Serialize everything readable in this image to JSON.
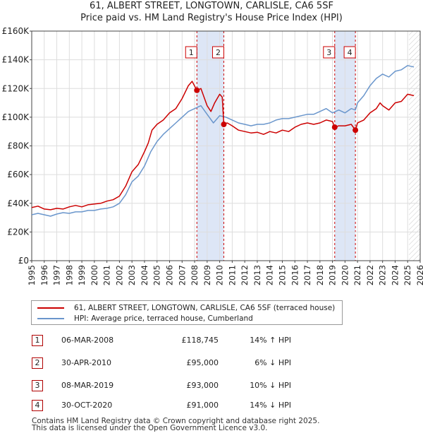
{
  "title_line1": "61, ALBERT STREET, LONGTOWN, CARLISLE, CA6 5SF",
  "title_line2": "Price paid vs. HM Land Registry's House Price Index (HPI)",
  "colors": {
    "property": "#cc0000",
    "hpi": "#6a96cc",
    "shade": "#dde6f6",
    "grid": "#dddddd",
    "hatch": "#c8c8c8"
  },
  "legend": {
    "property_label": "61, ALBERT STREET, LONGTOWN, CARLISLE, CA6 5SF (terraced house)",
    "hpi_label": "HPI: Average price, terraced house, Cumberland"
  },
  "transactions": [
    {
      "num": "1",
      "date": "06-MAR-2008",
      "price": "£118,745",
      "hpi": "14% ↑ HPI"
    },
    {
      "num": "2",
      "date": "30-APR-2010",
      "price": "£95,000",
      "hpi": "6% ↓ HPI"
    },
    {
      "num": "3",
      "date": "08-MAR-2019",
      "price": "£93,000",
      "hpi": "10% ↓ HPI"
    },
    {
      "num": "4",
      "date": "30-OCT-2020",
      "price": "£91,000",
      "hpi": "14% ↓ HPI"
    }
  ],
  "footer_line1": "Contains HM Land Registry data © Crown copyright and database right 2025.",
  "footer_line2": "This data is licensed under the Open Government Licence v3.0.",
  "chart_data": {
    "type": "line",
    "title": "61, ALBERT STREET, LONGTOWN, CARLISLE, CA6 5SF — Price paid vs. HM Land Registry's House Price Index (HPI)",
    "xlim": [
      1995,
      2026
    ],
    "ylim": [
      0,
      160000
    ],
    "x_ticks": [
      1995,
      1996,
      1997,
      1998,
      1999,
      2000,
      2001,
      2002,
      2003,
      2004,
      2005,
      2006,
      2007,
      2008,
      2009,
      2010,
      2011,
      2012,
      2013,
      2014,
      2015,
      2016,
      2017,
      2018,
      2019,
      2020,
      2021,
      2022,
      2023,
      2024,
      2025,
      2026
    ],
    "y_ticks": [
      0,
      20000,
      40000,
      60000,
      80000,
      100000,
      120000,
      140000,
      160000
    ],
    "y_tick_labels": [
      "£0",
      "£20K",
      "£40K",
      "£60K",
      "£80K",
      "£100K",
      "£120K",
      "£140K",
      "£160K"
    ],
    "shaded_ranges": [
      [
        2008.18,
        2010.33
      ],
      [
        2019.18,
        2020.83
      ]
    ],
    "future_hatch_from": 2025.1,
    "series": [
      {
        "name": "61, ALBERT STREET, LONGTOWN, CARLISLE, CA6 5SF (terraced house)",
        "color": "#cc0000",
        "points": [
          [
            1995.0,
            37000
          ],
          [
            1995.5,
            38000
          ],
          [
            1996.0,
            36000
          ],
          [
            1996.5,
            35500
          ],
          [
            1997.0,
            36500
          ],
          [
            1997.5,
            36000
          ],
          [
            1998.0,
            37500
          ],
          [
            1998.5,
            38500
          ],
          [
            1999.0,
            37500
          ],
          [
            1999.5,
            39000
          ],
          [
            2000.0,
            39500
          ],
          [
            2000.5,
            40000
          ],
          [
            2001.0,
            41500
          ],
          [
            2001.5,
            42500
          ],
          [
            2002.0,
            45000
          ],
          [
            2002.5,
            52000
          ],
          [
            2003.0,
            62000
          ],
          [
            2003.5,
            67000
          ],
          [
            2004.0,
            76000
          ],
          [
            2004.3,
            82000
          ],
          [
            2004.6,
            91000
          ],
          [
            2005.0,
            95000
          ],
          [
            2005.5,
            98000
          ],
          [
            2006.0,
            103000
          ],
          [
            2006.5,
            106000
          ],
          [
            2007.0,
            113000
          ],
          [
            2007.5,
            122000
          ],
          [
            2007.8,
            125000
          ],
          [
            2008.18,
            118745
          ],
          [
            2008.5,
            120000
          ],
          [
            2009.0,
            108000
          ],
          [
            2009.3,
            104000
          ],
          [
            2009.6,
            110000
          ],
          [
            2010.0,
            116000
          ],
          [
            2010.2,
            114000
          ],
          [
            2010.33,
            95000
          ],
          [
            2010.6,
            96000
          ],
          [
            2011.0,
            94000
          ],
          [
            2011.5,
            91000
          ],
          [
            2012.0,
            90000
          ],
          [
            2012.5,
            89000
          ],
          [
            2013.0,
            89500
          ],
          [
            2013.5,
            88000
          ],
          [
            2014.0,
            90000
          ],
          [
            2014.5,
            89000
          ],
          [
            2015.0,
            91000
          ],
          [
            2015.5,
            90000
          ],
          [
            2016.0,
            93000
          ],
          [
            2016.5,
            95000
          ],
          [
            2017.0,
            96000
          ],
          [
            2017.5,
            95000
          ],
          [
            2018.0,
            96000
          ],
          [
            2018.5,
            98000
          ],
          [
            2019.0,
            97000
          ],
          [
            2019.18,
            93000
          ],
          [
            2019.5,
            94000
          ],
          [
            2020.0,
            94000
          ],
          [
            2020.5,
            95000
          ],
          [
            2020.83,
            91000
          ],
          [
            2021.0,
            96000
          ],
          [
            2021.5,
            98000
          ],
          [
            2022.0,
            103000
          ],
          [
            2022.5,
            106000
          ],
          [
            2022.8,
            110000
          ],
          [
            2023.0,
            108000
          ],
          [
            2023.5,
            105000
          ],
          [
            2024.0,
            110000
          ],
          [
            2024.5,
            111000
          ],
          [
            2025.0,
            116000
          ],
          [
            2025.5,
            115000
          ]
        ]
      },
      {
        "name": "HPI: Average price, terraced house, Cumberland",
        "color": "#6a96cc",
        "points": [
          [
            1995.0,
            32000
          ],
          [
            1995.5,
            33000
          ],
          [
            1996.0,
            32000
          ],
          [
            1996.5,
            31000
          ],
          [
            1997.0,
            32500
          ],
          [
            1997.5,
            33500
          ],
          [
            1998.0,
            33000
          ],
          [
            1998.5,
            34000
          ],
          [
            1999.0,
            34000
          ],
          [
            1999.5,
            35000
          ],
          [
            2000.0,
            35000
          ],
          [
            2000.5,
            36000
          ],
          [
            2001.0,
            36500
          ],
          [
            2001.5,
            37500
          ],
          [
            2002.0,
            40000
          ],
          [
            2002.5,
            46000
          ],
          [
            2003.0,
            55000
          ],
          [
            2003.5,
            59000
          ],
          [
            2004.0,
            66000
          ],
          [
            2004.5,
            76000
          ],
          [
            2005.0,
            83000
          ],
          [
            2005.5,
            88000
          ],
          [
            2006.0,
            92000
          ],
          [
            2006.5,
            96000
          ],
          [
            2007.0,
            100000
          ],
          [
            2007.5,
            104000
          ],
          [
            2008.0,
            106000
          ],
          [
            2008.5,
            108000
          ],
          [
            2009.0,
            102000
          ],
          [
            2009.5,
            96000
          ],
          [
            2010.0,
            101000
          ],
          [
            2010.5,
            100000
          ],
          [
            2011.0,
            98000
          ],
          [
            2011.5,
            96000
          ],
          [
            2012.0,
            95000
          ],
          [
            2012.5,
            94000
          ],
          [
            2013.0,
            95000
          ],
          [
            2013.5,
            95000
          ],
          [
            2014.0,
            96000
          ],
          [
            2014.5,
            98000
          ],
          [
            2015.0,
            99000
          ],
          [
            2015.5,
            99000
          ],
          [
            2016.0,
            100000
          ],
          [
            2016.5,
            101000
          ],
          [
            2017.0,
            102000
          ],
          [
            2017.5,
            102000
          ],
          [
            2018.0,
            104000
          ],
          [
            2018.5,
            106000
          ],
          [
            2019.0,
            103000
          ],
          [
            2019.5,
            105000
          ],
          [
            2020.0,
            103000
          ],
          [
            2020.5,
            106000
          ],
          [
            2020.83,
            105000
          ],
          [
            2021.0,
            110000
          ],
          [
            2021.5,
            115000
          ],
          [
            2022.0,
            122000
          ],
          [
            2022.5,
            127000
          ],
          [
            2023.0,
            130000
          ],
          [
            2023.5,
            128000
          ],
          [
            2024.0,
            132000
          ],
          [
            2024.5,
            133000
          ],
          [
            2025.0,
            136000
          ],
          [
            2025.5,
            135000
          ]
        ]
      }
    ],
    "sale_points": [
      {
        "num": "1",
        "x": 2008.18,
        "y": 118745
      },
      {
        "num": "2",
        "x": 2010.33,
        "y": 95000
      },
      {
        "num": "3",
        "x": 2019.18,
        "y": 93000
      },
      {
        "num": "4",
        "x": 2020.83,
        "y": 91000
      }
    ]
  }
}
